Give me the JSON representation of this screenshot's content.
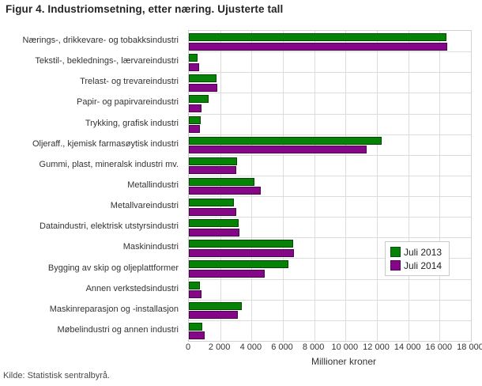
{
  "title": "Figur 4. Industriomsetning, etter næring. Ujusterte tall",
  "source": "Kilde: Statistisk sentralbyrå.",
  "colors": {
    "juli_2013": "#068206",
    "juli_2014": "#850687",
    "gridline": "#dcdcdc",
    "text": "#333333"
  },
  "chart_data": {
    "type": "bar",
    "orientation": "horizontal",
    "title": "Figur 4. Industriomsetning, etter næring. Ujusterte tall",
    "xlabel": "Millioner kroner",
    "xlim": [
      0,
      18000
    ],
    "xticks": [
      0,
      2000,
      4000,
      6000,
      8000,
      10000,
      12000,
      14000,
      16000,
      18000
    ],
    "xtick_labels": [
      "0",
      "2 000",
      "4 000",
      "6 000",
      "8 000",
      "10 000",
      "12 000",
      "14 000",
      "16 000",
      "18 000"
    ],
    "grid": true,
    "legend_position": "right-middle",
    "categories": [
      "Nærings-, drikkevare- og tobakksindustri",
      "Tekstil-, beklednings-, lærvareindustri",
      "Trelast- og trevareindustri",
      "Papir- og papirvareindustri",
      "Trykking, grafisk industri",
      "Oljeraff., kjemisk farmasøytisk industri",
      "Gummi, plast, mineralsk industri mv.",
      "Metallindustri",
      "Metallvareindustri",
      "Dataindustri, elektrisk utstyrsindustri",
      "Maskinindustri",
      "Bygging av skip og oljeplattformer",
      "Annen verkstedsindustri",
      "Maskinreparasjon og -installasjon",
      "Møbelindustri og annen industri"
    ],
    "series": [
      {
        "name": "Juli 2013",
        "color": "#068206",
        "values": [
          16430,
          550,
          1760,
          1260,
          760,
          12300,
          3070,
          4180,
          2870,
          3180,
          6650,
          6350,
          710,
          3380,
          880
        ]
      },
      {
        "name": "Juli 2014",
        "color": "#850687",
        "values": [
          16480,
          680,
          1840,
          810,
          730,
          11340,
          3020,
          4590,
          3000,
          3250,
          6710,
          4840,
          810,
          3130,
          1010
        ]
      }
    ]
  }
}
